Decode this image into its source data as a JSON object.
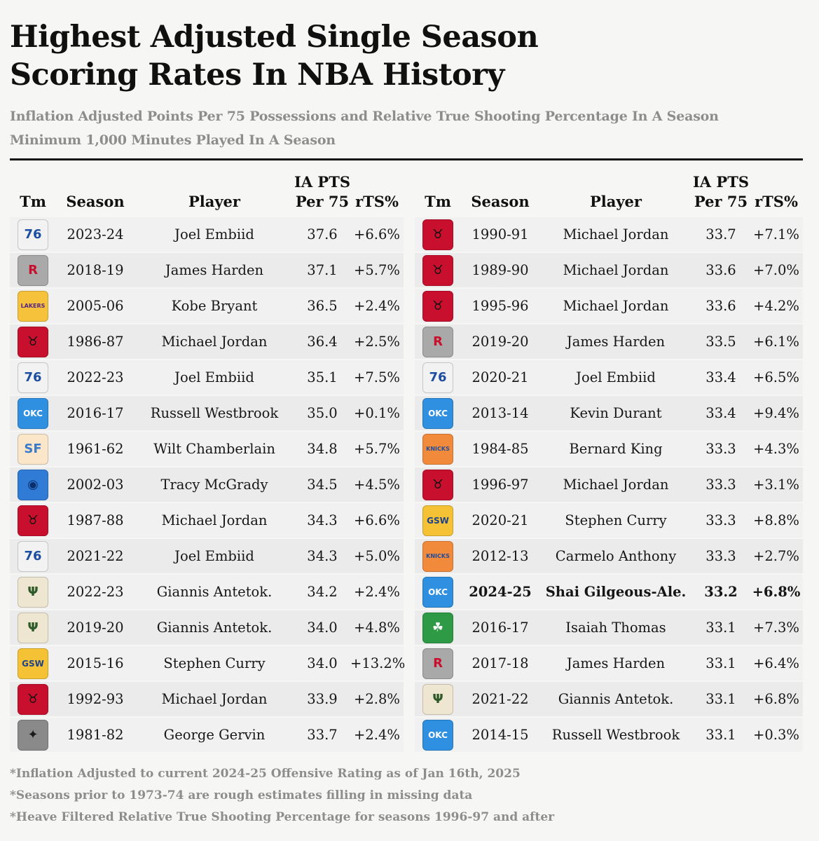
{
  "title_line1": "Highest Adjusted Single Season",
  "title_line2": "Scoring Rates In NBA History",
  "subtitle_line1": "Inflation Adjusted Points Per 75 Possessions and Relative True Shooting Percentage In A Season",
  "subtitle_line2": "Minimum 1,000 Minutes Played In A Season",
  "headers": {
    "team": "Tm",
    "season": "Season",
    "player": "Player",
    "pts_line1": "IA PTS",
    "pts_line2": "Per 75",
    "rts": "rTS%"
  },
  "team_styles": {
    "PHI": {
      "bg": "#f2f2f2",
      "fg": "#1d4ea0",
      "mark": "76"
    },
    "HOU": {
      "bg": "#a9a9a9",
      "fg": "#c8102e",
      "mark": "R"
    },
    "LAL": {
      "bg": "#f6c23c",
      "fg": "#552583",
      "mark": "LAKERS"
    },
    "CHI": {
      "bg": "#c8102e",
      "fg": "#111111",
      "mark": "♉"
    },
    "OKC": {
      "bg": "#2f8fe0",
      "fg": "#ffffff",
      "mark": "OKC"
    },
    "SFW": {
      "bg": "#fbe6c9",
      "fg": "#3b7bc9",
      "mark": "SF"
    },
    "ORL": {
      "bg": "#2f7bd6",
      "fg": "#0b2f6b",
      "mark": "◉"
    },
    "MIL": {
      "bg": "#efe6d2",
      "fg": "#2e5a2a",
      "mark": "Ψ"
    },
    "GSW": {
      "bg": "#f4c234",
      "fg": "#1d428a",
      "mark": "GSW"
    },
    "SAS": {
      "bg": "#8a8a8a",
      "fg": "#1a1a1a",
      "mark": "✦"
    },
    "NYK": {
      "bg": "#f28a3c",
      "fg": "#1d4ea0",
      "mark": "KNICKS"
    },
    "BOS": {
      "bg": "#2f9a45",
      "fg": "#ffffff",
      "mark": "☘"
    }
  },
  "left_rows": [
    {
      "team": "PHI",
      "season": "2023-24",
      "player": "Joel Embiid",
      "pts": "37.6",
      "rts": "+6.6%"
    },
    {
      "team": "HOU",
      "season": "2018-19",
      "player": "James Harden",
      "pts": "37.1",
      "rts": "+5.7%"
    },
    {
      "team": "LAL",
      "season": "2005-06",
      "player": "Kobe Bryant",
      "pts": "36.5",
      "rts": "+2.4%"
    },
    {
      "team": "CHI",
      "season": "1986-87",
      "player": "Michael Jordan",
      "pts": "36.4",
      "rts": "+2.5%"
    },
    {
      "team": "PHI",
      "season": "2022-23",
      "player": "Joel Embiid",
      "pts": "35.1",
      "rts": "+7.5%"
    },
    {
      "team": "OKC",
      "season": "2016-17",
      "player": "Russell Westbrook",
      "pts": "35.0",
      "rts": "+0.1%"
    },
    {
      "team": "SFW",
      "season": "1961-62",
      "player": "Wilt Chamberlain",
      "pts": "34.8",
      "rts": "+5.7%"
    },
    {
      "team": "ORL",
      "season": "2002-03",
      "player": "Tracy McGrady",
      "pts": "34.5",
      "rts": "+4.5%"
    },
    {
      "team": "CHI",
      "season": "1987-88",
      "player": "Michael Jordan",
      "pts": "34.3",
      "rts": "+6.6%"
    },
    {
      "team": "PHI",
      "season": "2021-22",
      "player": "Joel Embiid",
      "pts": "34.3",
      "rts": "+5.0%"
    },
    {
      "team": "MIL",
      "season": "2022-23",
      "player": "Giannis Antetok.",
      "pts": "34.2",
      "rts": "+2.4%"
    },
    {
      "team": "MIL",
      "season": "2019-20",
      "player": "Giannis Antetok.",
      "pts": "34.0",
      "rts": "+4.8%"
    },
    {
      "team": "GSW",
      "season": "2015-16",
      "player": "Stephen Curry",
      "pts": "34.0",
      "rts": "+13.2%"
    },
    {
      "team": "CHI",
      "season": "1992-93",
      "player": "Michael Jordan",
      "pts": "33.9",
      "rts": "+2.8%"
    },
    {
      "team": "SAS",
      "season": "1981-82",
      "player": "George Gervin",
      "pts": "33.7",
      "rts": "+2.4%"
    }
  ],
  "right_rows": [
    {
      "team": "CHI",
      "season": "1990-91",
      "player": "Michael Jordan",
      "pts": "33.7",
      "rts": "+7.1%"
    },
    {
      "team": "CHI",
      "season": "1989-90",
      "player": "Michael Jordan",
      "pts": "33.6",
      "rts": "+7.0%"
    },
    {
      "team": "CHI",
      "season": "1995-96",
      "player": "Michael Jordan",
      "pts": "33.6",
      "rts": "+4.2%"
    },
    {
      "team": "HOU",
      "season": "2019-20",
      "player": "James Harden",
      "pts": "33.5",
      "rts": "+6.1%"
    },
    {
      "team": "PHI",
      "season": "2020-21",
      "player": "Joel Embiid",
      "pts": "33.4",
      "rts": "+6.5%"
    },
    {
      "team": "OKC",
      "season": "2013-14",
      "player": "Kevin Durant",
      "pts": "33.4",
      "rts": "+9.4%"
    },
    {
      "team": "NYK",
      "season": "1984-85",
      "player": "Bernard King",
      "pts": "33.3",
      "rts": "+4.3%"
    },
    {
      "team": "CHI",
      "season": "1996-97",
      "player": "Michael Jordan",
      "pts": "33.3",
      "rts": "+3.1%"
    },
    {
      "team": "GSW",
      "season": "2020-21",
      "player": "Stephen Curry",
      "pts": "33.3",
      "rts": "+8.8%"
    },
    {
      "team": "NYK",
      "season": "2012-13",
      "player": "Carmelo Anthony",
      "pts": "33.3",
      "rts": "+2.7%"
    },
    {
      "team": "OKC",
      "season": "2024-25",
      "player": "Shai Gilgeous-Ale.",
      "pts": "33.2",
      "rts": "+6.8%",
      "highlight": true
    },
    {
      "team": "BOS",
      "season": "2016-17",
      "player": "Isaiah Thomas",
      "pts": "33.1",
      "rts": "+7.3%"
    },
    {
      "team": "HOU",
      "season": "2017-18",
      "player": "James Harden",
      "pts": "33.1",
      "rts": "+6.4%"
    },
    {
      "team": "MIL",
      "season": "2021-22",
      "player": "Giannis Antetok.",
      "pts": "33.1",
      "rts": "+6.8%"
    },
    {
      "team": "OKC",
      "season": "2014-15",
      "player": "Russell Westbrook",
      "pts": "33.1",
      "rts": "+0.3%"
    }
  ],
  "notes": [
    "*Inflation Adjusted to current 2024-25 Offensive Rating as of Jan 16th, 2025",
    "*Seasons prior to 1973-74 are rough estimates filling in missing data",
    "*Heave Filtered Relative True Shooting Percentage for seasons 1996-97 and after"
  ],
  "chart_data": {
    "type": "table",
    "title": "Highest Adjusted Single Season Scoring Rates In NBA History",
    "columns": [
      "Tm",
      "Season",
      "Player",
      "IA PTS Per 75",
      "rTS%"
    ],
    "rows": [
      [
        "PHI",
        "2023-24",
        "Joel Embiid",
        37.6,
        "+6.6%"
      ],
      [
        "HOU",
        "2018-19",
        "James Harden",
        37.1,
        "+5.7%"
      ],
      [
        "LAL",
        "2005-06",
        "Kobe Bryant",
        36.5,
        "+2.4%"
      ],
      [
        "CHI",
        "1986-87",
        "Michael Jordan",
        36.4,
        "+2.5%"
      ],
      [
        "PHI",
        "2022-23",
        "Joel Embiid",
        35.1,
        "+7.5%"
      ],
      [
        "OKC",
        "2016-17",
        "Russell Westbrook",
        35.0,
        "+0.1%"
      ],
      [
        "SFW",
        "1961-62",
        "Wilt Chamberlain",
        34.8,
        "+5.7%"
      ],
      [
        "ORL",
        "2002-03",
        "Tracy McGrady",
        34.5,
        "+4.5%"
      ],
      [
        "CHI",
        "1987-88",
        "Michael Jordan",
        34.3,
        "+6.6%"
      ],
      [
        "PHI",
        "2021-22",
        "Joel Embiid",
        34.3,
        "+5.0%"
      ],
      [
        "MIL",
        "2022-23",
        "Giannis Antetok.",
        34.2,
        "+2.4%"
      ],
      [
        "MIL",
        "2019-20",
        "Giannis Antetok.",
        34.0,
        "+4.8%"
      ],
      [
        "GSW",
        "2015-16",
        "Stephen Curry",
        34.0,
        "+13.2%"
      ],
      [
        "CHI",
        "1992-93",
        "Michael Jordan",
        33.9,
        "+2.8%"
      ],
      [
        "SAS",
        "1981-82",
        "George Gervin",
        33.7,
        "+2.4%"
      ],
      [
        "CHI",
        "1990-91",
        "Michael Jordan",
        33.7,
        "+7.1%"
      ],
      [
        "CHI",
        "1989-90",
        "Michael Jordan",
        33.6,
        "+7.0%"
      ],
      [
        "CHI",
        "1995-96",
        "Michael Jordan",
        33.6,
        "+4.2%"
      ],
      [
        "HOU",
        "2019-20",
        "James Harden",
        33.5,
        "+6.1%"
      ],
      [
        "PHI",
        "2020-21",
        "Joel Embiid",
        33.4,
        "+6.5%"
      ],
      [
        "OKC",
        "2013-14",
        "Kevin Durant",
        33.4,
        "+9.4%"
      ],
      [
        "NYK",
        "1984-85",
        "Bernard King",
        33.3,
        "+4.3%"
      ],
      [
        "CHI",
        "1996-97",
        "Michael Jordan",
        33.3,
        "+3.1%"
      ],
      [
        "GSW",
        "2020-21",
        "Stephen Curry",
        33.3,
        "+8.8%"
      ],
      [
        "NYK",
        "2012-13",
        "Carmelo Anthony",
        33.3,
        "+2.7%"
      ],
      [
        "OKC",
        "2024-25",
        "Shai Gilgeous-Ale.",
        33.2,
        "+6.8%"
      ],
      [
        "BOS",
        "2016-17",
        "Isaiah Thomas",
        33.1,
        "+7.3%"
      ],
      [
        "HOU",
        "2017-18",
        "James Harden",
        33.1,
        "+6.4%"
      ],
      [
        "MIL",
        "2021-22",
        "Giannis Antetok.",
        33.1,
        "+6.8%"
      ],
      [
        "OKC",
        "2014-15",
        "Russell Westbrook",
        33.1,
        "+0.3%"
      ]
    ]
  }
}
